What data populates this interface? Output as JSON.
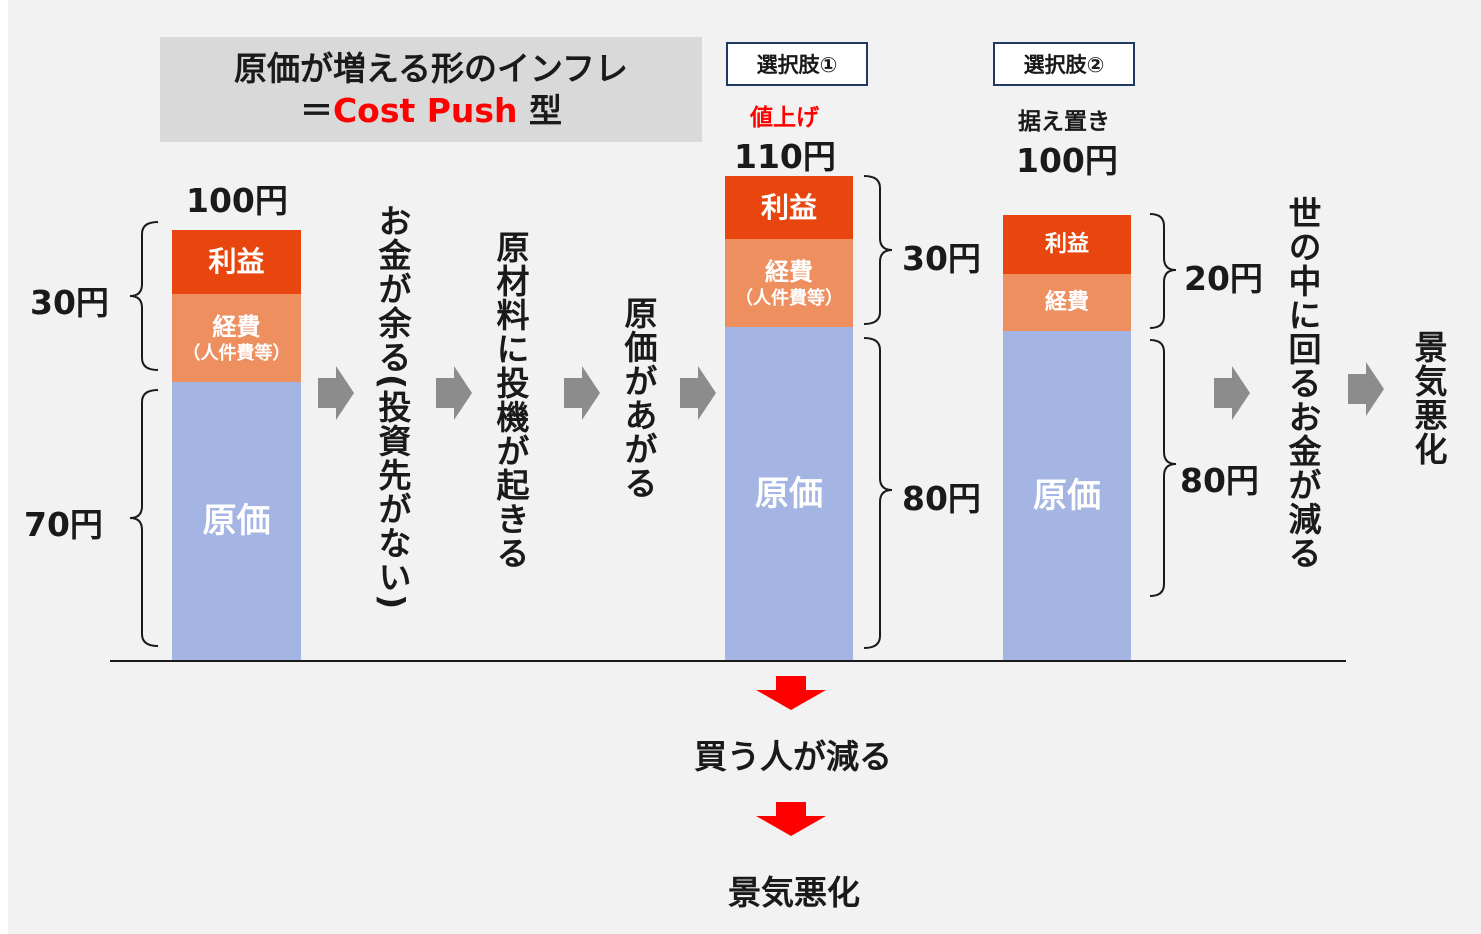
{
  "title": {
    "line1": "原価が増える形のインフレ",
    "line2_prefix": "＝",
    "line2_red": "Cost Push",
    "line2_suffix": " 型"
  },
  "bar1": {
    "total": "100円",
    "profit": "利益",
    "expense": "経費",
    "expense_sub": "（人件費等）",
    "cost": "原価",
    "label_upper": "30円",
    "label_lower": "70円"
  },
  "flow_steps": [
    "お金が余る(投資先がない)",
    "原材料に投機が起きる",
    "原価があがる"
  ],
  "option1": {
    "tag": "選択肢①",
    "action": "値上げ",
    "total": "110円",
    "profit": "利益",
    "expense": "経費",
    "expense_sub": "（人件費等）",
    "cost": "原価",
    "label_upper": "30円",
    "label_lower": "80円"
  },
  "option2": {
    "tag": "選択肢②",
    "action": "据え置き",
    "total": "100円",
    "profit": "利益",
    "expense": "経費",
    "cost": "原価",
    "label_upper": "20円",
    "label_lower": "80円"
  },
  "option2_flow": [
    "世の中に回るお金が減る",
    "景気悪化"
  ],
  "option1_flow": [
    "買う人が減る",
    "景気悪化"
  ],
  "colors": {
    "profit": "#e8460e",
    "expense": "#ee8f60",
    "cost": "#a4b5e4",
    "arrow_gray": "#8c8c8c",
    "arrow_red": "#ff0000",
    "accent": "#ff0000"
  }
}
